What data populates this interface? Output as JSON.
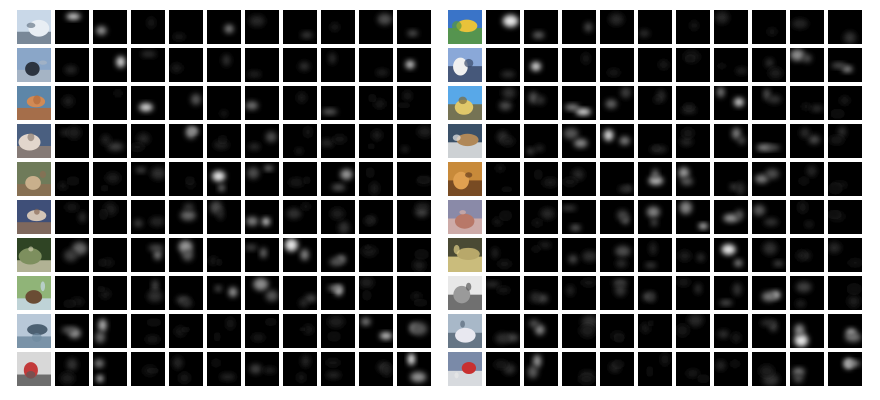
{
  "grid": {
    "rows": 10,
    "maps_per_row": 10
  },
  "panels": [
    {
      "name": "left",
      "rows": [
        {
          "thumb": "airplane",
          "colors": [
            "#c9d8e8",
            "#e8eef4",
            "#6b7a8a"
          ]
        },
        {
          "thumb": "automobile",
          "colors": [
            "#8aa6c8",
            "#2c3440",
            "#a9b6c4"
          ]
        },
        {
          "thumb": "bird",
          "colors": [
            "#5d86a8",
            "#d18a55",
            "#b26a3a"
          ]
        },
        {
          "thumb": "cat",
          "colors": [
            "#4a5f80",
            "#e2d6cc",
            "#8f7f74"
          ]
        },
        {
          "thumb": "deer",
          "colors": [
            "#6f7b5a",
            "#c9b08c",
            "#8c6f52"
          ]
        },
        {
          "thumb": "dog",
          "colors": [
            "#3f4f78",
            "#d2c4b6",
            "#8a6c58"
          ]
        },
        {
          "thumb": "frog",
          "colors": [
            "#2f4424",
            "#7d8f5e",
            "#c8c6a8"
          ]
        },
        {
          "thumb": "horse",
          "colors": [
            "#90b478",
            "#6a4c34",
            "#c8d8e8"
          ]
        },
        {
          "thumb": "ship",
          "colors": [
            "#b8c8d8",
            "#4c6072",
            "#6f8aa0"
          ]
        },
        {
          "thumb": "truck",
          "colors": [
            "#d8d8d8",
            "#c23a3a",
            "#5a5a5a"
          ]
        }
      ]
    },
    {
      "name": "right",
      "rows": [
        {
          "thumb": "airplane",
          "colors": [
            "#3a74c8",
            "#e8c23a",
            "#5a9a3a"
          ]
        },
        {
          "thumb": "automobile",
          "colors": [
            "#8aa8d8",
            "#f0f0f0",
            "#3a4a6a"
          ]
        },
        {
          "thumb": "bird",
          "colors": [
            "#58a8e8",
            "#e0c86a",
            "#7a6a3a"
          ]
        },
        {
          "thumb": "cat",
          "colors": [
            "#3a5068",
            "#b08858",
            "#e8e8e8"
          ]
        },
        {
          "thumb": "deer",
          "colors": [
            "#c88a3a",
            "#e0a050",
            "#6a4020"
          ]
        },
        {
          "thumb": "dog",
          "colors": [
            "#8a8aa8",
            "#b87868",
            "#d8b0a8"
          ]
        },
        {
          "thumb": "frog",
          "colors": [
            "#4a4a34",
            "#b8a86a",
            "#e0d08a"
          ]
        },
        {
          "thumb": "horse",
          "colors": [
            "#e8e8e8",
            "#9a9a9a",
            "#5a5a5a"
          ]
        },
        {
          "thumb": "ship",
          "colors": [
            "#a8b8c8",
            "#e8e8f0",
            "#5a6a7a"
          ]
        },
        {
          "thumb": "truck",
          "colors": [
            "#7a8aa8",
            "#c83030",
            "#e8e8e8"
          ]
        }
      ]
    }
  ],
  "activations": {
    "left": [
      [
        0.9,
        0.6,
        0.1,
        0.1,
        0.5,
        0.15,
        0.25,
        0.1,
        0.3,
        0.35
      ],
      [
        0.15,
        0.85,
        0.2,
        0.1,
        0.2,
        0.15,
        0.2,
        0.2,
        0.15,
        0.8
      ],
      [
        0.1,
        0.1,
        0.85,
        0.35,
        0.15,
        0.45,
        0.1,
        0.4,
        0.1,
        0.1
      ],
      [
        0.2,
        0.25,
        0.15,
        0.9,
        0.15,
        0.3,
        0.15,
        0.15,
        0.1,
        0.2
      ],
      [
        0.1,
        0.1,
        0.3,
        0.1,
        0.9,
        0.5,
        0.1,
        0.6,
        0.1,
        0.1
      ],
      [
        0.2,
        0.1,
        0.25,
        0.4,
        0.3,
        0.85,
        0.2,
        0.2,
        0.2,
        0.25
      ],
      [
        0.4,
        0.1,
        0.5,
        0.6,
        0.1,
        0.45,
        0.9,
        0.55,
        0.1,
        0.1
      ],
      [
        0.1,
        0.1,
        0.3,
        0.3,
        0.6,
        0.55,
        0.3,
        0.85,
        0.1,
        0.1
      ],
      [
        0.6,
        0.7,
        0.1,
        0.1,
        0.1,
        0.1,
        0.1,
        0.1,
        0.8,
        0.55
      ],
      [
        0.2,
        0.8,
        0.1,
        0.15,
        0.15,
        0.25,
        0.15,
        0.15,
        0.2,
        0.95
      ]
    ],
    "right": [
      [
        0.9,
        0.4,
        0.3,
        0.15,
        0.2,
        0.1,
        0.15,
        0.1,
        0.15,
        0.2
      ],
      [
        0.2,
        0.85,
        0.1,
        0.1,
        0.1,
        0.1,
        0.15,
        0.2,
        0.55,
        0.6
      ],
      [
        0.3,
        0.35,
        0.95,
        0.4,
        0.2,
        0.2,
        0.8,
        0.35,
        0.2,
        0.1
      ],
      [
        0.2,
        0.3,
        0.55,
        0.85,
        0.2,
        0.15,
        0.5,
        0.6,
        0.3,
        0.2
      ],
      [
        0.1,
        0.1,
        0.15,
        0.3,
        0.75,
        0.6,
        0.3,
        0.5,
        0.15,
        0.1
      ],
      [
        0.1,
        0.15,
        0.4,
        0.45,
        0.5,
        0.85,
        0.6,
        0.35,
        0.15,
        0.1
      ],
      [
        0.15,
        0.15,
        0.3,
        0.3,
        0.25,
        0.2,
        0.9,
        0.3,
        0.2,
        0.15
      ],
      [
        0.2,
        0.3,
        0.15,
        0.35,
        0.35,
        0.2,
        0.35,
        0.8,
        0.25,
        0.1
      ],
      [
        0.3,
        0.55,
        0.2,
        0.1,
        0.1,
        0.15,
        0.2,
        0.3,
        0.9,
        0.75
      ],
      [
        0.2,
        0.6,
        0.15,
        0.15,
        0.1,
        0.1,
        0.15,
        0.2,
        0.5,
        0.95
      ]
    ]
  }
}
